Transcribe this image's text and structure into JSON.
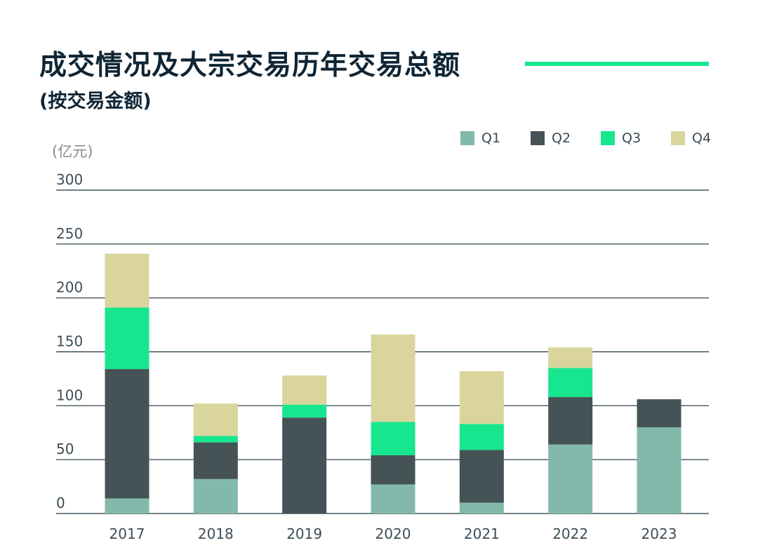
{
  "header": {
    "title": "成交情况及大宗交易历年交易总额",
    "subtitle": "(按交易金额)"
  },
  "chart_data": {
    "type": "bar",
    "stacked": true,
    "title": "成交情况及大宗交易历年交易总额",
    "subtitle": "(按交易金额)",
    "unit_label": "(亿元)",
    "xlabel": "",
    "ylabel": "(亿元)",
    "ylim": [
      0,
      300
    ],
    "yticks": [
      0,
      50,
      100,
      150,
      200,
      250,
      300
    ],
    "categories": [
      "2017",
      "2018",
      "2019",
      "2020",
      "2021",
      "2022",
      "2023"
    ],
    "series": [
      {
        "name": "Q1",
        "color": "#82b9aa",
        "values": [
          14,
          32,
          0,
          27,
          10,
          64,
          80
        ]
      },
      {
        "name": "Q2",
        "color": "#455356",
        "values": [
          120,
          34,
          89,
          27,
          49,
          44,
          26
        ]
      },
      {
        "name": "Q3",
        "color": "#17e68f",
        "values": [
          57,
          6,
          12,
          31,
          24,
          27,
          0
        ]
      },
      {
        "name": "Q4",
        "color": "#d9d59c",
        "values": [
          50,
          30,
          27,
          81,
          49,
          19,
          0
        ]
      }
    ],
    "legend_position": "top-right",
    "grid": true
  }
}
